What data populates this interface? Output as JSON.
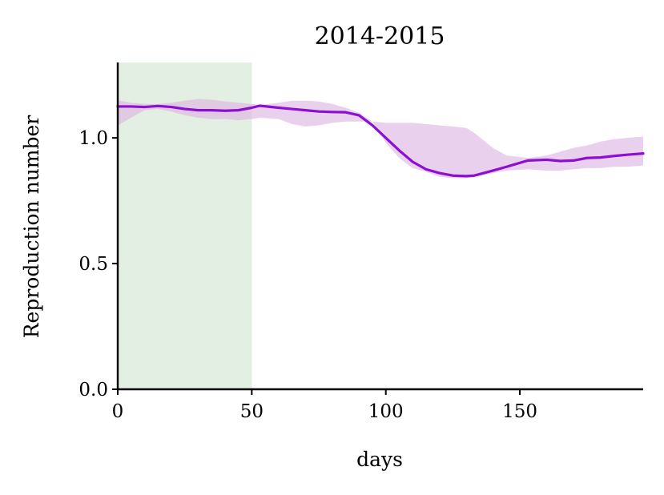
{
  "chart_data": {
    "type": "line",
    "title": "2014-2015",
    "xlabel": "days",
    "ylabel": "Reproduction number",
    "xlim": [
      0,
      196
    ],
    "ylim": [
      0,
      1.3
    ],
    "xticks": [
      0,
      50,
      100,
      150
    ],
    "xtick_labels": [
      "0",
      "50",
      "100",
      "150"
    ],
    "yticks": [
      0,
      0.5,
      1.0
    ],
    "ytick_labels": [
      "0.0",
      "0.5",
      "1.0"
    ],
    "grid": false,
    "legend": "none",
    "shaded_region": {
      "x_start": 0,
      "x_end": 50,
      "color": "#e4efe4"
    },
    "series": [
      {
        "color": "#8c0fd2",
        "band_color": "#dcb3e0",
        "points": [
          {
            "x": 0,
            "y": 1.125,
            "lo": 1.05,
            "hi": 1.15
          },
          {
            "x": 5,
            "y": 1.125,
            "lo": 1.08,
            "hi": 1.14
          },
          {
            "x": 10,
            "y": 1.123,
            "lo": 1.11,
            "hi": 1.135
          },
          {
            "x": 15,
            "y": 1.127,
            "lo": 1.115,
            "hi": 1.135
          },
          {
            "x": 20,
            "y": 1.123,
            "lo": 1.105,
            "hi": 1.14
          },
          {
            "x": 25,
            "y": 1.115,
            "lo": 1.09,
            "hi": 1.148
          },
          {
            "x": 30,
            "y": 1.11,
            "lo": 1.08,
            "hi": 1.155
          },
          {
            "x": 35,
            "y": 1.11,
            "lo": 1.075,
            "hi": 1.152
          },
          {
            "x": 40,
            "y": 1.108,
            "lo": 1.075,
            "hi": 1.145
          },
          {
            "x": 45,
            "y": 1.11,
            "lo": 1.07,
            "hi": 1.14
          },
          {
            "x": 50,
            "y": 1.12,
            "lo": 1.075,
            "hi": 1.135
          },
          {
            "x": 53,
            "y": 1.128,
            "lo": 1.08,
            "hi": 1.13
          },
          {
            "x": 60,
            "y": 1.12,
            "lo": 1.075,
            "hi": 1.14
          },
          {
            "x": 65,
            "y": 1.115,
            "lo": 1.055,
            "hi": 1.148
          },
          {
            "x": 70,
            "y": 1.11,
            "lo": 1.045,
            "hi": 1.148
          },
          {
            "x": 75,
            "y": 1.105,
            "lo": 1.05,
            "hi": 1.145
          },
          {
            "x": 80,
            "y": 1.103,
            "lo": 1.06,
            "hi": 1.135
          },
          {
            "x": 85,
            "y": 1.102,
            "lo": 1.065,
            "hi": 1.12
          },
          {
            "x": 90,
            "y": 1.09,
            "lo": 1.065,
            "hi": 1.1
          },
          {
            "x": 95,
            "y": 1.05,
            "lo": 1.065,
            "hi": 1.065
          },
          {
            "x": 100,
            "y": 1.0,
            "lo": 0.98,
            "hi": 1.06
          },
          {
            "x": 105,
            "y": 0.95,
            "lo": 0.92,
            "hi": 1.06
          },
          {
            "x": 110,
            "y": 0.905,
            "lo": 0.88,
            "hi": 1.06
          },
          {
            "x": 115,
            "y": 0.875,
            "lo": 0.865,
            "hi": 1.055
          },
          {
            "x": 120,
            "y": 0.86,
            "lo": 0.845,
            "hi": 1.05
          },
          {
            "x": 125,
            "y": 0.85,
            "lo": 0.84,
            "hi": 1.045
          },
          {
            "x": 130,
            "y": 0.848,
            "lo": 0.84,
            "hi": 1.04
          },
          {
            "x": 133,
            "y": 0.85,
            "lo": 0.845,
            "hi": 1.02
          },
          {
            "x": 140,
            "y": 0.87,
            "lo": 0.86,
            "hi": 0.96
          },
          {
            "x": 145,
            "y": 0.885,
            "lo": 0.87,
            "hi": 0.93
          },
          {
            "x": 153,
            "y": 0.91,
            "lo": 0.875,
            "hi": 0.92
          },
          {
            "x": 160,
            "y": 0.913,
            "lo": 0.87,
            "hi": 0.93
          },
          {
            "x": 165,
            "y": 0.908,
            "lo": 0.87,
            "hi": 0.945
          },
          {
            "x": 170,
            "y": 0.91,
            "lo": 0.875,
            "hi": 0.96
          },
          {
            "x": 175,
            "y": 0.92,
            "lo": 0.88,
            "hi": 0.97
          },
          {
            "x": 180,
            "y": 0.922,
            "lo": 0.88,
            "hi": 0.985
          },
          {
            "x": 185,
            "y": 0.928,
            "lo": 0.885,
            "hi": 0.995
          },
          {
            "x": 190,
            "y": 0.933,
            "lo": 0.885,
            "hi": 1.0
          },
          {
            "x": 196,
            "y": 0.938,
            "lo": 0.89,
            "hi": 1.005
          }
        ]
      }
    ]
  }
}
